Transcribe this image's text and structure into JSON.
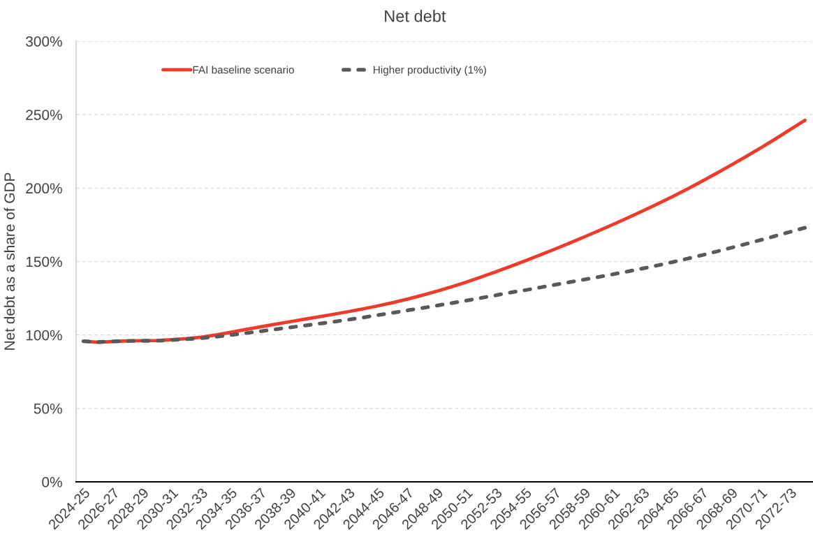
{
  "chart_data": {
    "type": "line",
    "title": "Net debt",
    "ylabel": "Net debt as a share of GDP",
    "categories": [
      "2024-25",
      null,
      "2026-27",
      null,
      "2028-29",
      null,
      "2030-31",
      null,
      "2032-33",
      null,
      "2034-35",
      null,
      "2036-37",
      null,
      "2038-39",
      null,
      "2040-41",
      null,
      "2042-43",
      null,
      "2044-45",
      null,
      "2046-47",
      null,
      "2048-49",
      null,
      "2050-51",
      null,
      "2052-53",
      null,
      "2054-55",
      null,
      "2056-57",
      null,
      "2058-59",
      null,
      "2060-61",
      null,
      "2062-63",
      null,
      "2064-65",
      null,
      "2066-67",
      null,
      "2068-69",
      null,
      "2070-71",
      null,
      "2072-73",
      null
    ],
    "series": [
      {
        "name": "FAI baseline scenario",
        "color": "#ee3b2b",
        "line_style": "solid",
        "values": [
          95.7,
          95.0,
          95.5,
          96.0,
          96.1,
          96.2,
          96.8,
          97.5,
          98.5,
          100.0,
          101.8,
          103.7,
          105.5,
          107.3,
          109.0,
          110.7,
          112.4,
          114.1,
          115.9,
          117.8,
          119.8,
          122.0,
          124.4,
          127.0,
          129.8,
          132.8,
          136.0,
          139.4,
          143.0,
          146.7,
          150.5,
          154.4,
          158.4,
          162.5,
          166.7,
          171.0,
          175.4,
          179.9,
          184.5,
          189.3,
          194.2,
          199.3,
          204.6,
          210.1,
          215.7,
          221.5,
          227.4,
          233.5,
          239.8,
          246.2
        ]
      },
      {
        "name": "Higher productivity (1%)",
        "color": "#595959",
        "line_style": "dashed",
        "values": [
          95.7,
          95.2,
          95.6,
          95.9,
          96.0,
          96.1,
          96.5,
          97.1,
          97.8,
          98.8,
          100.0,
          101.2,
          102.5,
          103.8,
          105.1,
          106.4,
          107.7,
          109.0,
          110.4,
          111.9,
          113.5,
          115.1,
          116.7,
          118.3,
          120.0,
          121.7,
          123.4,
          125.2,
          127.0,
          128.9,
          130.5,
          132.3,
          134.1,
          135.9,
          137.7,
          139.5,
          141.4,
          143.3,
          145.3,
          147.4,
          149.6,
          151.9,
          154.3,
          156.8,
          159.4,
          162.0,
          164.7,
          167.4,
          170.2,
          173.0
        ]
      }
    ],
    "ylim": [
      0,
      300
    ],
    "yticks": [
      {
        "value": 0,
        "label": "0%"
      },
      {
        "value": 50,
        "label": "50%"
      },
      {
        "value": 100,
        "label": "100%"
      },
      {
        "value": 150,
        "label": "150%"
      },
      {
        "value": 200,
        "label": "200%"
      },
      {
        "value": 250,
        "label": "250%"
      },
      {
        "value": 300,
        "label": "300%"
      }
    ],
    "grid": "y",
    "legend": "top left"
  }
}
